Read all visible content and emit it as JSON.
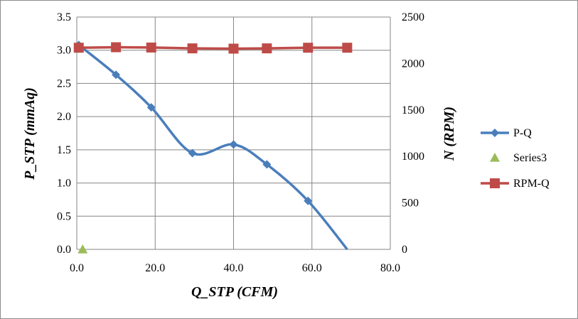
{
  "chart_data": {
    "type": "line",
    "title": "",
    "xlabel": "Q_STP (CFM)",
    "ylabel": "P_STP (mmAq)",
    "y2label": "N (RPM)",
    "xlim": [
      0,
      80
    ],
    "ylim": [
      0,
      3.5
    ],
    "y2lim": [
      0,
      2500
    ],
    "x_ticks": [
      "0.0",
      "20.0",
      "40.0",
      "60.0",
      "80.0"
    ],
    "y_ticks": [
      "0.0",
      "0.5",
      "1.0",
      "1.5",
      "2.0",
      "2.5",
      "3.0",
      "3.5"
    ],
    "y2_ticks": [
      "0",
      "500",
      "1000",
      "1500",
      "2000",
      "2500"
    ],
    "grid": true,
    "legend_position": "right",
    "series": [
      {
        "name": "P-Q",
        "axis": "left",
        "color": "#4a7ebb",
        "marker": "diamond",
        "smooth": true,
        "points": [
          [
            0.5,
            3.08
          ],
          [
            10,
            2.63
          ],
          [
            19,
            2.14
          ],
          [
            29.5,
            1.45
          ],
          [
            40,
            1.58
          ],
          [
            48.5,
            1.28
          ],
          [
            59,
            0.73
          ],
          [
            69,
            0.0
          ]
        ],
        "marker_points": [
          [
            0.5,
            3.08
          ],
          [
            10,
            2.63
          ],
          [
            19,
            2.14
          ],
          [
            29.5,
            1.45
          ],
          [
            40,
            1.58
          ],
          [
            48.5,
            1.28
          ],
          [
            59,
            0.73
          ]
        ]
      },
      {
        "name": "Series3",
        "axis": "left",
        "color": "#9bbb59",
        "marker": "triangle",
        "smooth": false,
        "points": [
          [
            1.5,
            0.0
          ]
        ],
        "marker_points": [
          [
            1.5,
            0.0
          ]
        ]
      },
      {
        "name": "RPM-Q",
        "axis": "right",
        "color": "#be4b48",
        "marker": "square",
        "smooth": false,
        "points": [
          [
            0.5,
            2170
          ],
          [
            10,
            2175
          ],
          [
            19,
            2172
          ],
          [
            29.5,
            2163
          ],
          [
            40,
            2160
          ],
          [
            48.5,
            2163
          ],
          [
            59,
            2170
          ],
          [
            69,
            2170
          ]
        ],
        "marker_points": [
          [
            0.5,
            2170
          ],
          [
            10,
            2175
          ],
          [
            19,
            2172
          ],
          [
            29.5,
            2163
          ],
          [
            40,
            2160
          ],
          [
            48.5,
            2163
          ],
          [
            59,
            2170
          ],
          [
            69,
            2170
          ]
        ]
      }
    ]
  }
}
